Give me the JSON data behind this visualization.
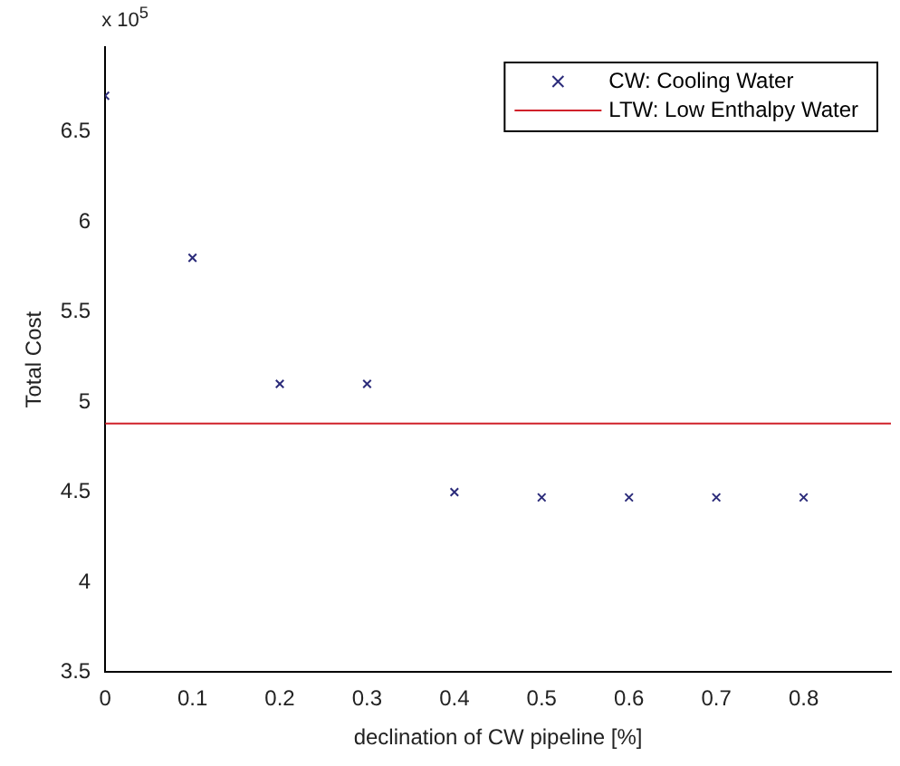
{
  "chart_data": {
    "type": "scatter",
    "xlabel": "declination of CW pipeline [%]",
    "ylabel": "Total Cost",
    "annotations": [
      "x 10$^{5}$"
    ],
    "xlim": [
      0,
      0.9
    ],
    "xticks": [
      0,
      0.1,
      0.2,
      0.3,
      0.4,
      0.5,
      0.6,
      0.7,
      0.8
    ],
    "ylim": [
      3.5,
      6.97
    ],
    "yticks": [
      3.5,
      4,
      4.5,
      5,
      5.5,
      6,
      6.5
    ],
    "series": [
      {
        "name": "CW: Cooling Water",
        "color": "#2b2b7a",
        "marker": "cross",
        "x": [
          0,
          0.1,
          0.2,
          0.3,
          0.4,
          0.5,
          0.6,
          0.7,
          0.8
        ],
        "values": [
          6.7,
          5.8,
          5.1,
          5.1,
          4.5,
          4.47,
          4.47,
          4.47,
          4.47
        ]
      },
      {
        "name": "LTW: Low Enthalpy Water",
        "type": "line",
        "color": "#d0202a",
        "marker": "none",
        "line_style": "solid",
        "x": [
          0,
          0.9
        ],
        "values": [
          4.88,
          4.88
        ]
      }
    ],
    "grid": false,
    "legend": "top right"
  }
}
